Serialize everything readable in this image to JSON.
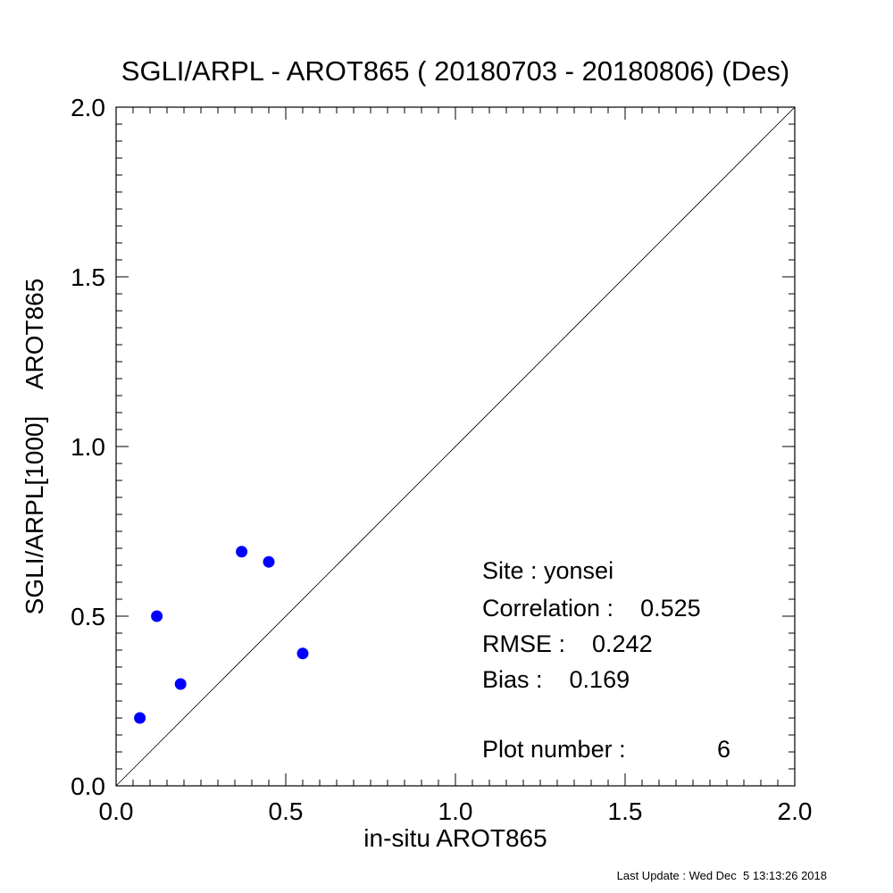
{
  "chart_data": {
    "type": "scatter",
    "title": "SGLI/ARPL - AROT865 ( 20180703 - 20180806) (Des)",
    "xlabel": "in-situ AROT865",
    "ylabel": "SGLI/ARPL[1000]    AROT865",
    "xlim": [
      0.0,
      2.0
    ],
    "ylim": [
      0.0,
      2.0
    ],
    "x_ticks": [
      "0.0",
      "0.5",
      "1.0",
      "1.5",
      "2.0"
    ],
    "y_ticks": [
      "0.0",
      "0.5",
      "1.0",
      "1.5",
      "2.0"
    ],
    "grid": false,
    "reference_line": "1:1",
    "point_color": "#0000ff",
    "points": [
      {
        "x": 0.07,
        "y": 0.2
      },
      {
        "x": 0.12,
        "y": 0.5
      },
      {
        "x": 0.19,
        "y": 0.3
      },
      {
        "x": 0.37,
        "y": 0.69
      },
      {
        "x": 0.45,
        "y": 0.66
      },
      {
        "x": 0.55,
        "y": 0.39
      }
    ]
  },
  "stats": {
    "site": "Site : yonsei",
    "correlation": "Correlation :    0.525",
    "rmse": "RMSE :    0.242",
    "bias": "Bias :    0.169",
    "plot_number_label": "Plot number :",
    "plot_number_value": "6"
  },
  "footer": {
    "last_update": "Last Update : Wed Dec  5 13:13:26 2018"
  }
}
